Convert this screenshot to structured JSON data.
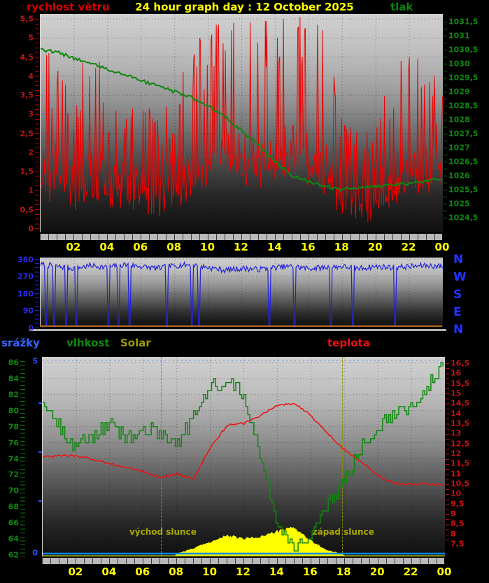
{
  "header": {
    "left_label": "rychlost větru",
    "title": "24 hour graph day : 12 October 2025",
    "right_label": "tlak"
  },
  "section_labels": {
    "rain": "srážky",
    "humidity": "vlhkost",
    "solar": "Solar",
    "temperature": "teplota"
  },
  "annotations": {
    "sunrise_label": "východ slunce",
    "sunset_label": "západ slunce",
    "sunrise_hour": 7.05,
    "sunset_hour": 17.85
  },
  "colors": {
    "background": "#000000",
    "wind_speed": "#ee0000",
    "pressure": "#0f870f",
    "title": "#ffff00",
    "hour_labels": "#ffff00",
    "wind_direction": "#2222dd",
    "compass": "#2233ff",
    "rain": "#0088ee",
    "humidity": "#0f870f",
    "solar_fill": "#ffff00",
    "solar_label": "#9a9a00",
    "temperature": "#ee1111",
    "sun_annotations": "#a8a800",
    "baseline_orange": "#b5692c",
    "axis_strip": "#b8b8b8"
  },
  "axes": {
    "wind_speed_ticks": [
      "5,5",
      "5",
      "4,5",
      "4",
      "3,5",
      "3",
      "2,5",
      "2",
      "1,5",
      "1",
      "0,5",
      "0"
    ],
    "pressure_ticks": [
      "1031,5",
      "1031",
      "1030,5",
      "1030",
      "1029,5",
      "1029",
      "1028,5",
      "1028",
      "1027,5",
      "1027",
      "1026,5",
      "1026",
      "1025,5",
      "1025",
      "1024,5"
    ],
    "wind_dir_ticks": [
      "360",
      "270",
      "180",
      "90",
      "0"
    ],
    "compass": [
      "N",
      "W",
      "S",
      "E",
      "N"
    ],
    "humidity_ticks": [
      "86",
      "84",
      "82",
      "80",
      "78",
      "76",
      "74",
      "72",
      "70",
      "68",
      "66",
      "64",
      "62"
    ],
    "temperature_ticks": [
      "16,5",
      "16",
      "15,5",
      "15",
      "14,5",
      "14",
      "13,5",
      "13",
      "12,5",
      "12",
      "11,5",
      "11",
      "10,5",
      "10",
      "9,5",
      "9",
      "8,5",
      "8",
      "7,5"
    ],
    "rain_ticks": [
      "5",
      "0"
    ],
    "hour_labels": [
      "02",
      "04",
      "06",
      "08",
      "10",
      "12",
      "14",
      "16",
      "18",
      "20",
      "22",
      "00"
    ]
  },
  "chart_data": [
    {
      "type": "line",
      "title": "wind speed (rychlost větru) and pressure (tlak)",
      "x_hours": [
        0,
        1,
        2,
        3,
        4,
        5,
        6,
        7,
        8,
        9,
        10,
        11,
        12,
        13,
        14,
        15,
        16,
        17,
        18,
        19,
        20,
        21,
        22,
        23,
        24
      ],
      "left_axis": {
        "min": 0,
        "max": 5.5,
        "step": 0.5
      },
      "right_axis": {
        "min": 1024.5,
        "max": 1031.5,
        "step": 0.5
      },
      "grid": true,
      "series": [
        {
          "name": "rychlost větru",
          "color": "#ee0000",
          "axis": "left",
          "style": "spiky",
          "hourly_mean": [
            1.2,
            1.5,
            1.0,
            1.2,
            1.3,
            1.0,
            1.1,
            1.0,
            1.2,
            1.5,
            1.8,
            2.0,
            1.8,
            1.7,
            1.9,
            2.0,
            1.8,
            1.5,
            1.0,
            0.8,
            0.9,
            1.2,
            1.5,
            1.4,
            1.3
          ],
          "hourly_gust": [
            4.7,
            4.5,
            3.0,
            5.6,
            3.2,
            3.0,
            3.3,
            3.0,
            3.4,
            4.8,
            5.2,
            5.5,
            5.3,
            5.5,
            5.4,
            5.6,
            5.5,
            5.2,
            2.8,
            2.5,
            2.6,
            4.3,
            4.5,
            4.4,
            3.6
          ]
        },
        {
          "name": "tlak",
          "color": "#0f870f",
          "axis": "right",
          "values": [
            1030.5,
            1030.4,
            1030.2,
            1030.0,
            1029.8,
            1029.6,
            1029.4,
            1029.2,
            1029.0,
            1028.8,
            1028.5,
            1028.1,
            1027.6,
            1027.1,
            1026.5,
            1026.0,
            1025.8,
            1025.6,
            1025.5,
            1025.6,
            1025.6,
            1025.7,
            1025.7,
            1025.8,
            1025.9
          ]
        }
      ]
    },
    {
      "type": "line",
      "title": "wind direction",
      "x_hours": [
        0,
        1,
        2,
        3,
        4,
        5,
        6,
        7,
        8,
        9,
        10,
        11,
        12,
        13,
        14,
        15,
        16,
        17,
        18,
        19,
        20,
        21,
        22,
        23,
        24
      ],
      "left_axis": {
        "min": 0,
        "max": 360,
        "step": 90
      },
      "right_axis_labels": [
        "N",
        "W",
        "S",
        "E",
        "N"
      ],
      "grid": true,
      "series": [
        {
          "name": "wind direction",
          "color": "#2222dd",
          "axis": "left",
          "style": "noisy-with-drops",
          "values": [
            330,
            320,
            310,
            325,
            315,
            330,
            320,
            310,
            325,
            330,
            315,
            300,
            310,
            305,
            315,
            320,
            310,
            315,
            320,
            310,
            320,
            315,
            320,
            325,
            320
          ],
          "drops_to_zero_at_hours": [
            0.3,
            0.8,
            1.5,
            2.1,
            4.0,
            4.6,
            5.3,
            7.5,
            9.0,
            9.4,
            13.6,
            15.1,
            17.3,
            18.6,
            21.1
          ]
        }
      ]
    },
    {
      "type": "line",
      "title": "rain (srážky), humidity (vlhkost), Solar, temperature (teplota)",
      "x_hours": [
        0,
        1,
        2,
        3,
        4,
        5,
        6,
        7,
        8,
        9,
        10,
        11,
        12,
        13,
        14,
        15,
        16,
        17,
        18,
        19,
        20,
        21,
        22,
        23,
        24
      ],
      "left_axis_humidity": {
        "min": 62,
        "max": 86,
        "step": 2
      },
      "left_axis_rain": {
        "min": 0,
        "max": 5
      },
      "right_axis_temperature": {
        "min": 7.5,
        "max": 16.5,
        "step": 0.5
      },
      "grid": true,
      "sunrise_hour": 7.05,
      "sunset_hour": 17.85,
      "series": [
        {
          "name": "vlhkost",
          "color": "#0f870f",
          "axis": "left-humidity",
          "style": "stepped",
          "values": [
            81,
            78,
            75.5,
            77,
            78.5,
            76.5,
            77.5,
            77.5,
            76,
            79,
            83,
            84,
            82,
            74,
            66,
            63,
            64.5,
            68,
            71.5,
            75.5,
            78,
            80,
            80.5,
            83,
            86
          ]
        },
        {
          "name": "teplota",
          "color": "#ee1111",
          "axis": "right",
          "values": [
            11.8,
            11.9,
            11.9,
            11.7,
            11.5,
            11.3,
            11.1,
            10.8,
            11.0,
            10.7,
            12.3,
            13.4,
            13.5,
            13.9,
            14.4,
            14.5,
            13.9,
            13.0,
            12.2,
            11.6,
            10.9,
            10.5,
            10.5,
            10.5,
            10.4
          ]
        },
        {
          "name": "Solar",
          "color": "#ffff00",
          "axis": "unscaled",
          "style": "filled-area",
          "values": [
            0,
            0,
            0,
            0,
            0,
            0,
            0,
            0,
            10,
            60,
            120,
            180,
            150,
            170,
            220,
            260,
            130,
            40,
            0,
            0,
            0,
            0,
            0,
            0,
            0
          ]
        },
        {
          "name": "srážky",
          "color": "#0088ee",
          "axis": "left-rain",
          "values": [
            0,
            0,
            0,
            0,
            0,
            0,
            0,
            0,
            0,
            0,
            0,
            0,
            0,
            0,
            0,
            0,
            0,
            0,
            0,
            0,
            0,
            0,
            0,
            0,
            0
          ]
        }
      ]
    }
  ]
}
